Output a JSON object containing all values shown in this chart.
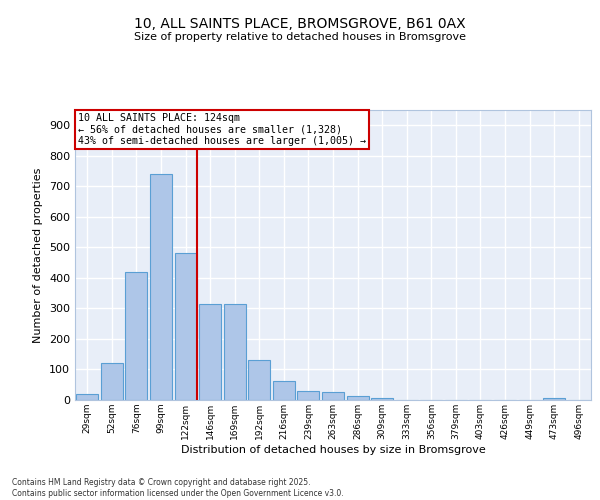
{
  "title1": "10, ALL SAINTS PLACE, BROMSGROVE, B61 0AX",
  "title2": "Size of property relative to detached houses in Bromsgrove",
  "xlabel": "Distribution of detached houses by size in Bromsgrove",
  "ylabel": "Number of detached properties",
  "bar_labels": [
    "29sqm",
    "52sqm",
    "76sqm",
    "99sqm",
    "122sqm",
    "146sqm",
    "169sqm",
    "192sqm",
    "216sqm",
    "239sqm",
    "263sqm",
    "286sqm",
    "309sqm",
    "333sqm",
    "356sqm",
    "379sqm",
    "403sqm",
    "426sqm",
    "449sqm",
    "473sqm",
    "496sqm"
  ],
  "bar_values": [
    20,
    122,
    420,
    740,
    480,
    315,
    315,
    132,
    62,
    30,
    25,
    12,
    7,
    0,
    0,
    0,
    0,
    0,
    0,
    8,
    0
  ],
  "bar_color": "#aec6e8",
  "bar_edge_color": "#5a9fd4",
  "red_line_index": 4,
  "annotation_title": "10 ALL SAINTS PLACE: 124sqm",
  "annotation_line1": "← 56% of detached houses are smaller (1,328)",
  "annotation_line2": "43% of semi-detached houses are larger (1,005) →",
  "annotation_box_color": "#ffffff",
  "annotation_box_edge_color": "#cc0000",
  "ylim": [
    0,
    950
  ],
  "yticks": [
    0,
    100,
    200,
    300,
    400,
    500,
    600,
    700,
    800,
    900
  ],
  "background_color": "#e8eef8",
  "grid_color": "#ffffff",
  "footer_line1": "Contains HM Land Registry data © Crown copyright and database right 2025.",
  "footer_line2": "Contains public sector information licensed under the Open Government Licence v3.0."
}
